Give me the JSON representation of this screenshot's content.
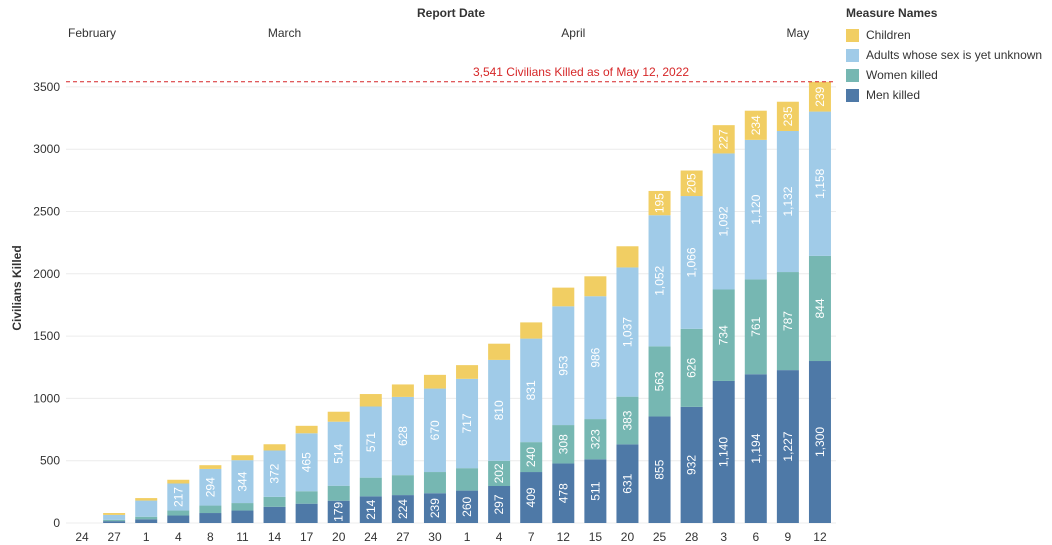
{
  "chart_data": {
    "type": "bar",
    "stacked": true,
    "title": "Report Date",
    "xlabel": "",
    "ylabel": "Civilians Killed",
    "ylim": [
      0,
      3500
    ],
    "yticks": [
      0,
      500,
      1000,
      1500,
      2000,
      2500,
      3000,
      3500
    ],
    "grid": true,
    "legend_position": "right",
    "months": [
      {
        "label": "February",
        "start_index": 0
      },
      {
        "label": "March",
        "start_index": 6
      },
      {
        "label": "April",
        "start_index": 15
      },
      {
        "label": "May",
        "start_index": 22
      }
    ],
    "categories": [
      "24",
      "27",
      "1",
      "4",
      "8",
      "11",
      "14",
      "17",
      "20",
      "24",
      "27",
      "30",
      "1",
      "4",
      "7",
      "12",
      "15",
      "20",
      "25",
      "28",
      "3",
      "6",
      "9",
      "12"
    ],
    "series": [
      {
        "name": "Men killed",
        "color": "#4e79a7",
        "values": [
          0,
          15,
          30,
          60,
          80,
          100,
          130,
          155,
          179,
          214,
          224,
          239,
          260,
          297,
          409,
          478,
          511,
          631,
          855,
          932,
          1140,
          1194,
          1227,
          1300
        ]
      },
      {
        "name": "Women killed",
        "color": "#76b7b2",
        "values": [
          0,
          10,
          20,
          40,
          60,
          60,
          80,
          100,
          120,
          150,
          160,
          170,
          180,
          202,
          240,
          308,
          323,
          383,
          563,
          626,
          734,
          761,
          787,
          844
        ]
      },
      {
        "name": "Adults whose sex is yet unknown",
        "color": "#a0cbe8",
        "values": [
          0,
          40,
          130,
          217,
          294,
          344,
          372,
          465,
          514,
          571,
          628,
          670,
          717,
          810,
          831,
          953,
          986,
          1037,
          1052,
          1066,
          1092,
          1120,
          1132,
          1158
        ]
      },
      {
        "name": "Children",
        "color": "#f1ce63",
        "values": [
          0,
          15,
          20,
          30,
          30,
          40,
          50,
          60,
          80,
          100,
          100,
          110,
          110,
          130,
          130,
          150,
          160,
          170,
          195,
          205,
          227,
          234,
          235,
          239
        ]
      }
    ],
    "data_labels": {
      "Men killed": [
        null,
        null,
        null,
        null,
        null,
        null,
        null,
        null,
        "179",
        "214",
        "224",
        "239",
        "260",
        "297",
        "409",
        "478",
        "511",
        "631",
        "855",
        "932",
        "1,140",
        "1,194",
        "1,227",
        "1,300"
      ],
      "Women killed": [
        null,
        null,
        null,
        null,
        null,
        null,
        null,
        null,
        null,
        null,
        null,
        null,
        null,
        "202",
        "240",
        "308",
        "323",
        "383",
        "563",
        "626",
        "734",
        "761",
        "787",
        "844"
      ],
      "Adults whose sex is yet unknown": [
        null,
        null,
        null,
        "217",
        "294",
        "344",
        "372",
        "465",
        "514",
        "571",
        "628",
        "670",
        "717",
        "810",
        "831",
        "953",
        "986",
        "1,037",
        "1,052",
        "1,066",
        "1,092",
        "1,120",
        "1,132",
        "1,158"
      ],
      "Children": [
        null,
        null,
        null,
        null,
        null,
        null,
        null,
        null,
        null,
        null,
        null,
        null,
        null,
        null,
        null,
        null,
        null,
        null,
        "195",
        "205",
        "227",
        "234",
        "235",
        "239"
      ]
    },
    "reference_line": {
      "value": 3541,
      "label": "3,541 Civilians Killed as of May 12, 2022",
      "color": "#d62728"
    }
  },
  "legend": {
    "title": "Measure Names",
    "items": [
      {
        "label": "Children",
        "color": "#f1ce63"
      },
      {
        "label": "Adults whose sex is yet unknown",
        "color": "#a0cbe8"
      },
      {
        "label": "Women killed",
        "color": "#76b7b2"
      },
      {
        "label": "Men killed",
        "color": "#4e79a7"
      }
    ]
  }
}
